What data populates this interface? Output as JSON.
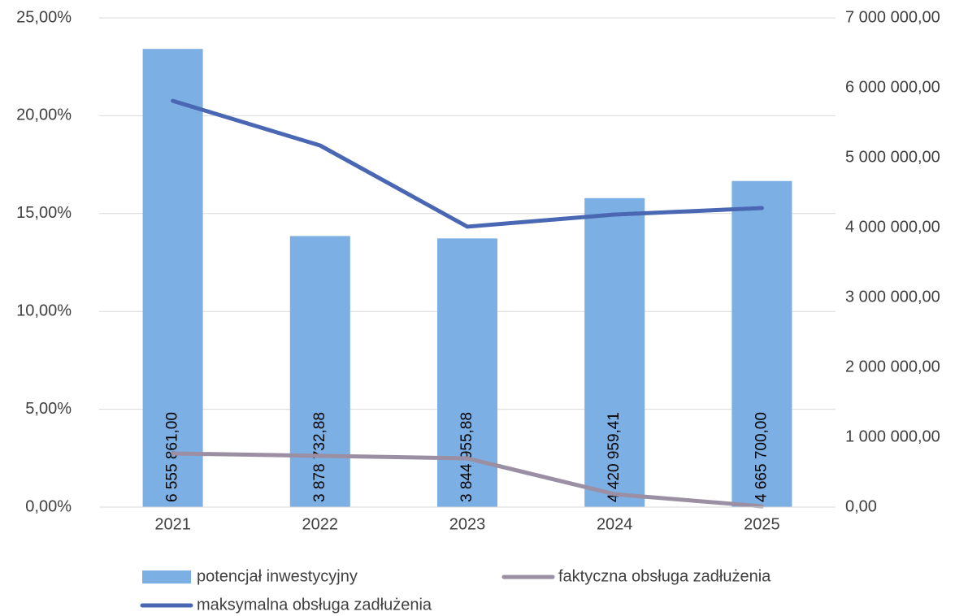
{
  "chart_data": {
    "type": "combo",
    "categories": [
      "2021",
      "2022",
      "2023",
      "2024",
      "2025"
    ],
    "series": [
      {
        "name": "potencjał inwestycyjny",
        "type": "bar",
        "axis": "y2",
        "color": "#7cafe4",
        "values": [
          6555861,
          3878732.88,
          3844955.88,
          4420959.41,
          4665700
        ],
        "value_labels": [
          "6 555 861,00",
          "3 878 732,88",
          "3 844 955,88",
          "4 420 959,41",
          "4 665 700,00"
        ]
      },
      {
        "name": "faktyczna obsługa zadłużenia",
        "type": "line",
        "axis": "y",
        "color": "#9b8fa4",
        "values": [
          2.74,
          2.62,
          2.49,
          0.66,
          0.04
        ]
      },
      {
        "name": "maksymalna obsługa zadłużenia",
        "type": "line",
        "axis": "y",
        "color": "#4a67b3",
        "values": [
          20.76,
          18.48,
          14.33,
          14.95,
          15.28
        ]
      }
    ],
    "ylim": [
      0,
      25
    ],
    "yticks": [
      {
        "value": 0,
        "label": "0,00%"
      },
      {
        "value": 5,
        "label": "5,00%"
      },
      {
        "value": 10,
        "label": "10,00%"
      },
      {
        "value": 15,
        "label": "15,00%"
      },
      {
        "value": 20,
        "label": "20,00%"
      },
      {
        "value": 25,
        "label": "25,00%"
      }
    ],
    "y2lim": [
      0,
      7000000
    ],
    "y2ticks": [
      {
        "value": 0,
        "label": "0,00"
      },
      {
        "value": 1000000,
        "label": "1 000 000,00"
      },
      {
        "value": 2000000,
        "label": "2 000 000,00"
      },
      {
        "value": 3000000,
        "label": "3 000 000,00"
      },
      {
        "value": 4000000,
        "label": "4 000 000,00"
      },
      {
        "value": 5000000,
        "label": "5 000 000,00"
      },
      {
        "value": 6000000,
        "label": "6 000 000,00"
      },
      {
        "value": 7000000,
        "label": "7 000 000,00"
      }
    ],
    "grid": true,
    "legend": "bottom"
  }
}
